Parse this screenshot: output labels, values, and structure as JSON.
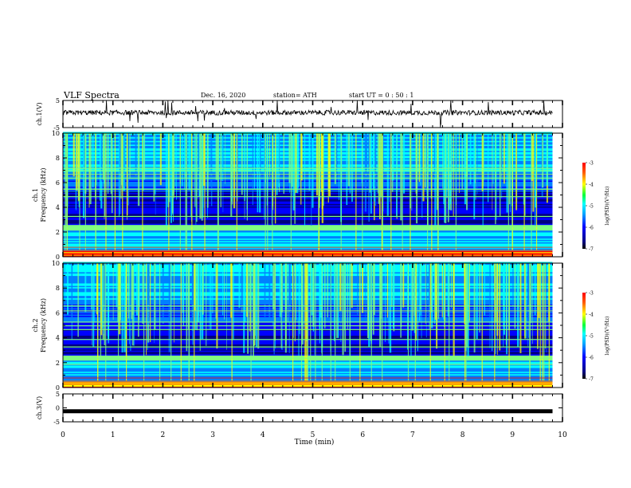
{
  "header": {
    "title": "VLF Spectra",
    "date": "Dec. 16, 2020",
    "station": "station= ATH",
    "start": "start  UT  =   0  : 50 : 1"
  },
  "chart_data": [
    {
      "type": "line",
      "id": "ch1-waveform",
      "ylabel": "ch.1(V)",
      "ylim": [
        -5,
        5
      ],
      "yticks": [
        "5",
        "-5"
      ],
      "xlim": [
        0,
        10
      ],
      "data_end_min": 9.8,
      "baseline_v": 0.5,
      "color": "#000000"
    },
    {
      "type": "heatmap",
      "id": "ch1-spectrogram",
      "ylabel": "ch.1\nFrequency (kHz)",
      "ylim": [
        0,
        10
      ],
      "yticks": [
        "0",
        "2",
        "4",
        "6",
        "8",
        "10"
      ],
      "xlim": [
        0,
        10
      ],
      "data_end_min": 9.8,
      "colorbar": {
        "label": "log(PSD)(V²/Hz)",
        "range": [
          -7,
          -3
        ],
        "ticks": [
          "-3",
          "-4",
          "-5",
          "-6",
          "-7"
        ]
      }
    },
    {
      "type": "heatmap",
      "id": "ch2-spectrogram",
      "ylabel": "ch.2\nFrequency (kHz)",
      "ylim": [
        0,
        10
      ],
      "yticks": [
        "0",
        "2",
        "4",
        "6",
        "8",
        "10"
      ],
      "xlim": [
        0,
        10
      ],
      "data_end_min": 9.8,
      "colorbar": {
        "label": "log(PSD)(V²/Hz)",
        "range": [
          -7,
          -3
        ],
        "ticks": [
          "-3",
          "-4",
          "-5",
          "-6",
          "-7"
        ]
      }
    },
    {
      "type": "line",
      "id": "ch3-waveform",
      "ylabel": "ch.3(V)",
      "ylim": [
        -5,
        5
      ],
      "yticks": [
        "5",
        "0",
        "-5"
      ],
      "xlim": [
        0,
        10
      ],
      "data_end_min": 9.8,
      "baseline_v": -1.2,
      "color": "#000000"
    }
  ],
  "xaxis": {
    "label": "Time  (min)",
    "ticks": [
      "0",
      "1",
      "2",
      "3",
      "4",
      "5",
      "6",
      "7",
      "8",
      "9",
      "10"
    ]
  },
  "colormap": [
    "#000080",
    "#0000ff",
    "#0080ff",
    "#00ffff",
    "#80ff80",
    "#ffff00",
    "#ff8000",
    "#ff0000"
  ]
}
